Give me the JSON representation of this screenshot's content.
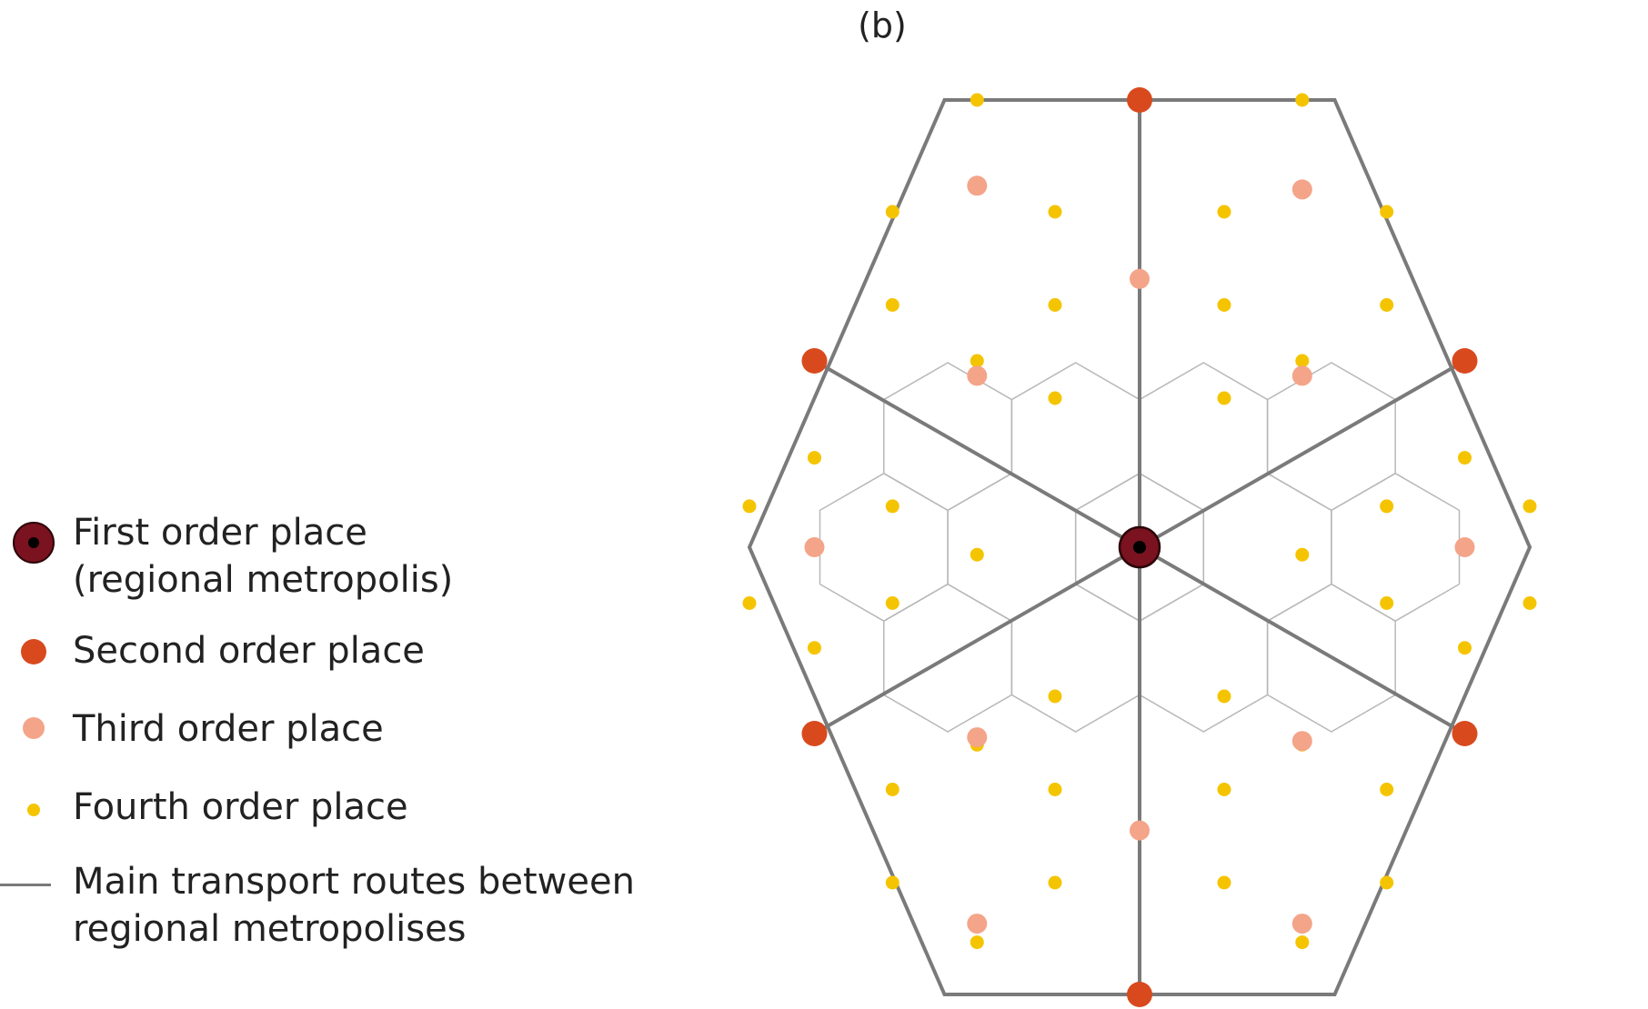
{
  "panel_label": "(b)",
  "legend": {
    "first_order": [
      "First order place",
      "(regional metropolis)"
    ],
    "second_order": "Second order place",
    "third_order": "Third order place",
    "fourth_order": "Fourth order place",
    "routes": [
      "Main transport routes between",
      "regional metropolises"
    ]
  },
  "colors": {
    "first_order_fill": "#7a1220",
    "second_order": "#d84a1e",
    "third_order": "#f4a488",
    "fourth_order": "#f5c400",
    "route_line": "#7a7a7a",
    "hex_grid": "#b8b8b8"
  }
}
